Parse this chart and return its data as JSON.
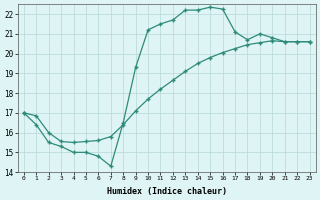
{
  "line1_x": [
    0,
    1,
    2,
    3,
    4,
    5,
    6,
    7,
    8,
    9,
    10,
    11,
    12,
    13,
    14,
    15,
    16,
    17,
    18,
    19,
    20,
    21,
    22,
    23
  ],
  "line1_y": [
    17.0,
    16.4,
    15.5,
    15.3,
    15.0,
    15.0,
    14.8,
    14.3,
    16.5,
    19.3,
    21.2,
    21.5,
    21.7,
    22.2,
    22.2,
    22.35,
    22.25,
    21.1,
    20.7,
    21.0,
    20.8,
    20.6,
    20.6,
    20.6
  ],
  "line2_x": [
    0,
    1,
    2,
    3,
    4,
    5,
    6,
    7,
    8,
    9,
    10,
    11,
    12,
    13,
    14,
    15,
    16,
    17,
    18,
    19,
    20,
    21,
    22,
    23
  ],
  "line2_y": [
    17.0,
    16.85,
    16.0,
    15.55,
    15.5,
    15.55,
    15.6,
    15.8,
    16.4,
    17.1,
    17.7,
    18.2,
    18.65,
    19.1,
    19.5,
    19.8,
    20.05,
    20.25,
    20.45,
    20.55,
    20.65,
    20.6,
    20.6,
    20.6
  ],
  "line_color": "#2e8b7a",
  "bg_color": "#dff4f4",
  "grid_color_major": "#b8d8d8",
  "grid_color_minor": "#cce8e8",
  "xlabel": "Humidex (Indice chaleur)",
  "ylim": [
    14,
    22.5
  ],
  "xlim": [
    -0.5,
    23.5
  ],
  "yticks": [
    14,
    15,
    16,
    17,
    18,
    19,
    20,
    21,
    22
  ],
  "xticks": [
    0,
    1,
    2,
    3,
    4,
    5,
    6,
    7,
    8,
    9,
    10,
    11,
    12,
    13,
    14,
    15,
    16,
    17,
    18,
    19,
    20,
    21,
    22,
    23
  ]
}
